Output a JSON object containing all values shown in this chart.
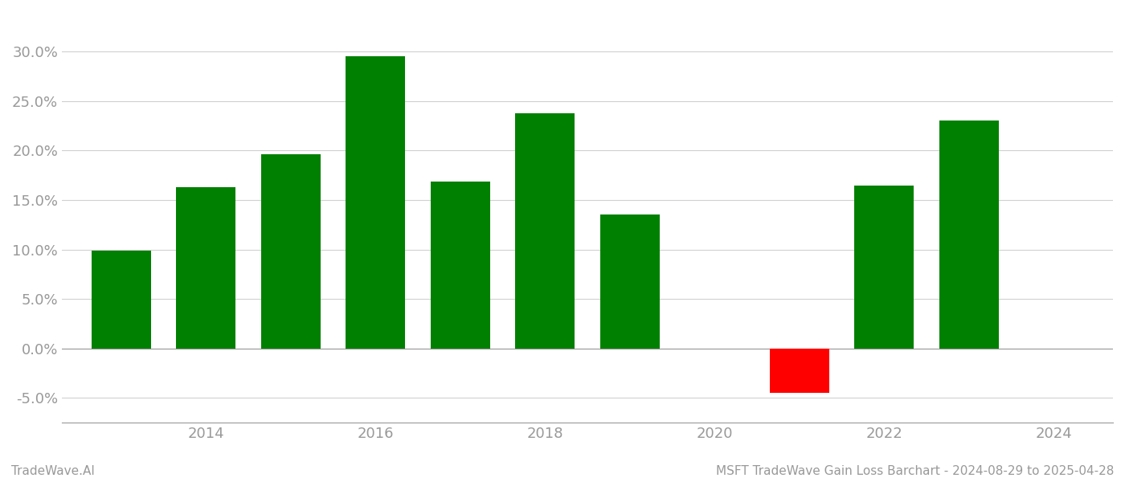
{
  "years": [
    2013,
    2014,
    2015,
    2016,
    2017,
    2018,
    2019,
    2021,
    2022,
    2023
  ],
  "values": [
    0.099,
    0.163,
    0.196,
    0.295,
    0.169,
    0.238,
    0.135,
    -0.045,
    0.165,
    0.23
  ],
  "bar_colors": [
    "#008000",
    "#008000",
    "#008000",
    "#008000",
    "#008000",
    "#008000",
    "#008000",
    "#ff0000",
    "#008000",
    "#008000"
  ],
  "footer_left": "TradeWave.AI",
  "footer_right": "MSFT TradeWave Gain Loss Barchart - 2024-08-29 to 2025-04-28",
  "ylim": [
    -0.075,
    0.34
  ],
  "yticks": [
    -0.05,
    0.0,
    0.05,
    0.1,
    0.15,
    0.2,
    0.25,
    0.3
  ],
  "xlim": [
    2012.3,
    2024.7
  ],
  "background_color": "#ffffff",
  "bar_width": 0.7,
  "grid_color": "#d0d0d0",
  "tick_color": "#999999",
  "footer_fontsize": 11,
  "axis_label_fontsize": 13
}
